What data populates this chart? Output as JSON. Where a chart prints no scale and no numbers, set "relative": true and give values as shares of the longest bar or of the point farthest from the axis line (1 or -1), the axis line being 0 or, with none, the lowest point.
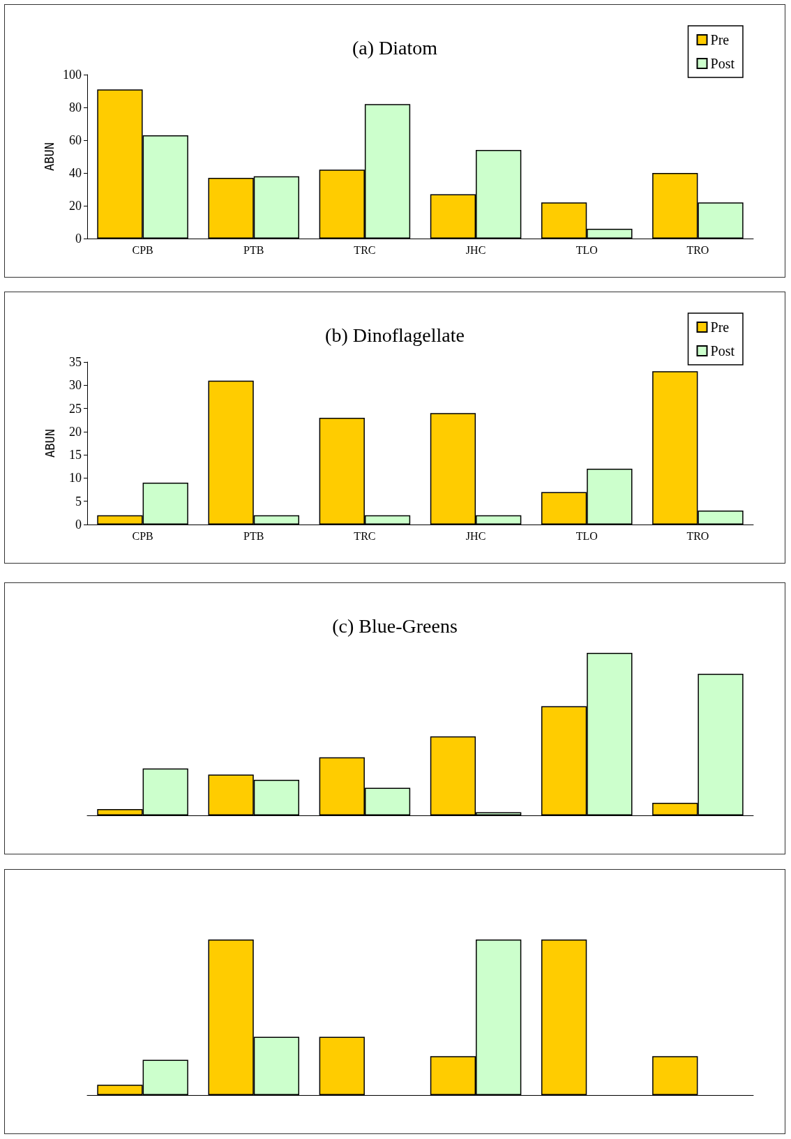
{
  "chart_data": [
    {
      "type": "bar",
      "title": "(a) Diatom",
      "ylabel": "ABUN",
      "categories": [
        "CPB",
        "PTB",
        "TRC",
        "JHC",
        "TLO",
        "TRO"
      ],
      "series": [
        {
          "name": "Pre",
          "color": "#ffcc00",
          "values": [
            91,
            37,
            42,
            27,
            22,
            40
          ]
        },
        {
          "name": "Post",
          "color": "#ccffcc",
          "values": [
            63,
            38,
            82,
            54,
            6,
            22
          ]
        }
      ],
      "ylim": [
        0,
        100
      ],
      "yticks": [
        0,
        20,
        40,
        60,
        80,
        100
      ],
      "grid": false,
      "legend": "top right"
    },
    {
      "type": "bar",
      "title": "(b) Dinoflagellate",
      "ylabel": "ABUN",
      "categories": [
        "CPB",
        "PTB",
        "TRC",
        "JHC",
        "TLO",
        "TRO"
      ],
      "series": [
        {
          "name": "Pre",
          "color": "#ffcc00",
          "values": [
            2,
            31,
            23,
            24,
            7,
            33
          ]
        },
        {
          "name": "Post",
          "color": "#ccffcc",
          "values": [
            9,
            2,
            2,
            2,
            12,
            3
          ]
        }
      ],
      "ylim": [
        0,
        35
      ],
      "yticks": [
        0,
        5,
        10,
        15,
        20,
        25,
        30,
        35
      ],
      "grid": false,
      "legend": "top right"
    },
    {
      "type": "bar",
      "title": "(c) Blue-Greens",
      "categories": [
        null,
        null,
        null,
        null,
        null,
        null
      ],
      "relative": true,
      "series": [
        {
          "color": "#ffcc00",
          "values": [
            0.039,
            0.251,
            0.357,
            0.486,
            0.672,
            0.077
          ]
        },
        {
          "color": "#ccffcc",
          "values": [
            0.289,
            0.219,
            0.17,
            0.019,
            1,
            0.871
          ]
        }
      ],
      "grid": false,
      "legend": false
    },
    {
      "type": "bar",
      "categories": [
        null,
        null,
        null,
        null,
        null,
        null
      ],
      "relative": true,
      "series": [
        {
          "color": "#ffcc00",
          "values": [
            0.066,
            1,
            0.375,
            0.25,
            1,
            0.25
          ]
        },
        {
          "color": "#ccffcc",
          "values": [
            0.226,
            0.375,
            null,
            1,
            null,
            null
          ]
        }
      ],
      "grid": false,
      "legend": false
    }
  ]
}
